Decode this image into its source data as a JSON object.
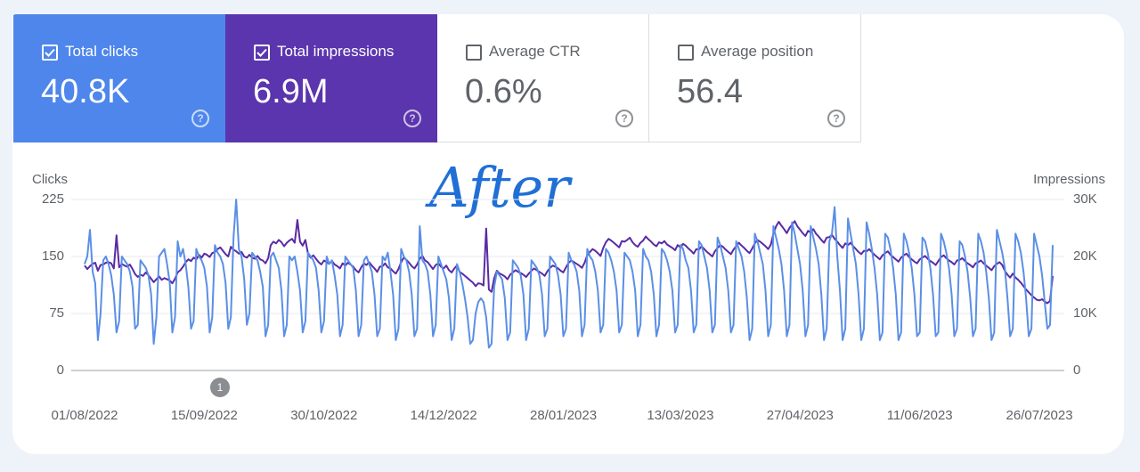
{
  "cards": [
    {
      "label": "Total clicks",
      "value": "40.8K",
      "selected": true,
      "color": "#4e86ec"
    },
    {
      "label": "Total impressions",
      "value": "6.9M",
      "selected": true,
      "color": "#5b35ae"
    },
    {
      "label": "Average CTR",
      "value": "0.6%",
      "selected": false
    },
    {
      "label": "Average position",
      "value": "56.4",
      "selected": false
    }
  ],
  "chart_data": {
    "type": "line",
    "annotation": "After",
    "event_marker": "1",
    "y_label": "Clicks",
    "y2_label": "Impressions",
    "ylim": [
      0,
      225
    ],
    "yticks": [
      0,
      75,
      150,
      225
    ],
    "y2lim": [
      0,
      30000
    ],
    "y2ticks": [
      0,
      {
        "value": 10000,
        "label": "10K"
      },
      {
        "value": 20000,
        "label": "20K"
      },
      {
        "value": 30000,
        "label": "30K"
      }
    ],
    "grid": true,
    "categories": [
      "01/08/2022",
      null,
      null,
      null,
      null,
      null,
      null,
      null,
      null,
      null,
      null,
      null,
      null,
      null,
      null,
      null,
      null,
      null,
      null,
      null,
      null,
      null,
      null,
      null,
      null,
      null,
      null,
      null,
      null,
      null,
      null,
      null,
      null,
      null,
      null,
      null,
      null,
      null,
      null,
      null,
      null,
      null,
      null,
      null,
      null,
      "15/09/2022",
      null,
      null,
      null,
      null,
      null,
      null,
      null,
      null,
      null,
      null,
      null,
      null,
      null,
      null,
      null,
      null,
      null,
      null,
      null,
      null,
      null,
      null,
      null,
      null,
      null,
      null,
      null,
      null,
      null,
      null,
      null,
      null,
      null,
      null,
      null,
      null,
      null,
      null,
      null,
      null,
      null,
      null,
      null,
      null,
      "30/10/2022",
      null,
      null,
      null,
      null,
      null,
      null,
      null,
      null,
      null,
      null,
      null,
      null,
      null,
      null,
      null,
      null,
      null,
      null,
      null,
      null,
      null,
      null,
      null,
      null,
      null,
      null,
      null,
      null,
      null,
      null,
      null,
      null,
      null,
      null,
      null,
      null,
      null,
      null,
      null,
      null,
      null,
      null,
      null,
      null,
      "14/12/2022",
      null,
      null,
      null,
      null,
      null,
      null,
      null,
      null,
      null,
      null,
      null,
      null,
      null,
      null,
      null,
      null,
      null,
      null,
      null,
      null,
      null,
      null,
      null,
      null,
      null,
      null,
      null,
      null,
      null,
      null,
      null,
      null,
      null,
      null,
      null,
      null,
      null,
      null,
      null,
      null,
      null,
      null,
      null,
      null,
      "28/01/2023",
      null,
      null,
      null,
      null,
      null,
      null,
      null,
      null,
      null,
      null,
      null,
      null,
      null,
      null,
      null,
      null,
      null,
      null,
      null,
      null,
      null,
      null,
      null,
      null,
      null,
      null,
      null,
      null,
      null,
      null,
      null,
      null,
      null,
      null,
      null,
      null,
      null,
      null,
      null,
      null,
      null,
      null,
      null,
      "13/03/2023",
      null,
      null,
      null,
      null,
      null,
      null,
      null,
      null,
      null,
      null,
      null,
      null,
      null,
      null,
      null,
      null,
      null,
      null,
      null,
      null,
      null,
      null,
      null,
      null,
      null,
      null,
      null,
      null,
      null,
      null,
      null,
      null,
      null,
      null,
      null,
      null,
      null,
      null,
      null,
      null,
      null,
      null,
      null,
      null,
      "27/04/2023",
      null,
      null,
      null,
      null,
      null,
      null,
      null,
      null,
      null,
      null,
      null,
      null,
      null,
      null,
      null,
      null,
      null,
      null,
      null,
      null,
      null,
      null,
      null,
      null,
      null,
      null,
      null,
      null,
      null,
      null,
      null,
      null,
      null,
      null,
      null,
      null,
      null,
      null,
      null,
      null,
      null,
      null,
      null,
      null,
      "11/06/2023",
      null,
      null,
      null,
      null,
      null,
      null,
      null,
      null,
      null,
      null,
      null,
      null,
      null,
      null,
      null,
      null,
      null,
      null,
      null,
      null,
      null,
      null,
      null,
      null,
      null,
      null,
      null,
      null,
      null,
      null,
      null,
      null,
      null,
      null,
      null,
      null,
      null,
      null,
      null,
      null,
      null,
      null,
      null,
      null,
      "26/07/2023",
      null,
      null,
      null,
      null,
      null
    ],
    "series": [
      {
        "color": "#5a8fe6",
        "values": [
          140,
          150,
          185,
          130,
          115,
          40,
          75,
          145,
          150,
          140,
          125,
          100,
          50,
          65,
          150,
          145,
          140,
          130,
          110,
          55,
          60,
          145,
          140,
          135,
          125,
          100,
          35,
          70,
          150,
          155,
          160,
          140,
          115,
          50,
          70,
          170,
          150,
          160,
          140,
          110,
          55,
          65,
          160,
          150,
          145,
          135,
          110,
          50,
          70,
          165,
          155,
          150,
          140,
          115,
          55,
          70,
          175,
          225,
          160,
          150,
          120,
          60,
          75,
          155,
          150,
          145,
          130,
          110,
          45,
          60,
          150,
          155,
          145,
          135,
          105,
          45,
          60,
          150,
          145,
          150,
          130,
          105,
          50,
          65,
          155,
          150,
          145,
          135,
          105,
          50,
          65,
          150,
          140,
          145,
          125,
          100,
          45,
          60,
          150,
          145,
          140,
          135,
          105,
          45,
          60,
          145,
          150,
          140,
          130,
          100,
          45,
          55,
          150,
          145,
          155,
          130,
          100,
          40,
          55,
          160,
          150,
          145,
          130,
          100,
          45,
          55,
          190,
          145,
          140,
          130,
          100,
          45,
          60,
          150,
          140,
          130,
          120,
          95,
          40,
          55,
          140,
          130,
          115,
          95,
          70,
          35,
          40,
          75,
          90,
          95,
          90,
          70,
          30,
          35,
          110,
          130,
          125,
          120,
          95,
          40,
          50,
          145,
          140,
          135,
          125,
          100,
          40,
          55,
          145,
          140,
          135,
          125,
          100,
          45,
          55,
          150,
          145,
          140,
          125,
          100,
          45,
          55,
          155,
          145,
          140,
          130,
          105,
          45,
          60,
          160,
          150,
          145,
          130,
          105,
          50,
          60,
          160,
          155,
          145,
          130,
          105,
          50,
          60,
          155,
          150,
          145,
          130,
          105,
          45,
          60,
          160,
          150,
          145,
          130,
          100,
          45,
          60,
          160,
          155,
          145,
          130,
          105,
          50,
          60,
          165,
          160,
          145,
          135,
          105,
          50,
          60,
          170,
          165,
          150,
          135,
          105,
          50,
          60,
          175,
          165,
          150,
          135,
          105,
          50,
          60,
          170,
          160,
          150,
          130,
          95,
          40,
          55,
          180,
          170,
          155,
          140,
          105,
          45,
          60,
          190,
          175,
          160,
          140,
          105,
          45,
          60,
          195,
          180,
          160,
          140,
          105,
          45,
          60,
          190,
          175,
          160,
          140,
          100,
          40,
          55,
          170,
          180,
          215,
          150,
          105,
          40,
          55,
          200,
          180,
          160,
          140,
          100,
          40,
          55,
          195,
          180,
          160,
          135,
          100,
          40,
          50,
          180,
          175,
          160,
          135,
          100,
          40,
          50,
          180,
          170,
          155,
          135,
          100,
          45,
          50,
          175,
          170,
          155,
          135,
          100,
          45,
          50,
          180,
          170,
          155,
          135,
          100,
          45,
          55,
          170,
          165,
          150,
          130,
          95,
          45,
          55,
          180,
          170,
          155,
          130,
          95,
          40,
          50,
          185,
          170,
          155,
          135,
          95,
          45,
          55,
          180,
          170,
          155,
          130,
          95,
          45,
          55,
          180,
          165,
          150,
          125,
          90,
          55,
          60,
          165
        ]
      },
      {
        "color": "#5a2aa3",
        "axis": "y2",
        "values": [
          18400,
          17800,
          18300,
          18700,
          18900,
          17500,
          18500,
          18600,
          18900,
          19000,
          18800,
          17900,
          23700,
          18100,
          18700,
          18400,
          18200,
          18600,
          17800,
          16900,
          16400,
          16800,
          16600,
          17200,
          16700,
          16100,
          15500,
          16000,
          16500,
          15900,
          16200,
          16000,
          15800,
          15300,
          16100,
          17200,
          17600,
          18200,
          19000,
          19500,
          19200,
          19800,
          19500,
          20300,
          19800,
          20500,
          20300,
          19900,
          20600,
          20800,
          21300,
          21600,
          21000,
          20400,
          20000,
          21700,
          21200,
          20900,
          20500,
          20800,
          20000,
          19800,
          20300,
          19800,
          19600,
          20100,
          19500,
          19300,
          18800,
          19700,
          22000,
          22600,
          22300,
          22900,
          22500,
          21800,
          22400,
          22800,
          23100,
          22400,
          26400,
          22600,
          21900,
          22900,
          20500,
          19800,
          20200,
          19600,
          19000,
          18600,
          19300,
          19000,
          18700,
          19200,
          18600,
          18300,
          17900,
          18800,
          18400,
          18900,
          18600,
          18200,
          17600,
          17200,
          18100,
          18800,
          18500,
          19000,
          18400,
          17900,
          17300,
          18200,
          18300,
          18800,
          18100,
          17900,
          17400,
          17000,
          17800,
          19000,
          19800,
          19400,
          18900,
          18300,
          17900,
          18600,
          19600,
          20100,
          19300,
          19000,
          18400,
          17800,
          18500,
          18800,
          18200,
          17900,
          18400,
          17600,
          17200,
          17900,
          18400,
          17300,
          17000,
          16600,
          16200,
          15800,
          15400,
          14800,
          15300,
          15200,
          14900,
          24900,
          14200,
          13800,
          16200,
          17500,
          17000,
          16800,
          16500,
          16000,
          16800,
          17200,
          17600,
          17300,
          17100,
          16800,
          16400,
          17000,
          17500,
          17900,
          17600,
          17300,
          17000,
          16600,
          17400,
          18000,
          18400,
          18200,
          17900,
          17500,
          17200,
          18100,
          18900,
          19300,
          19000,
          18700,
          18400,
          18000,
          18900,
          20200,
          20800,
          21300,
          21000,
          20600,
          20100,
          21500,
          22500,
          23100,
          22800,
          22400,
          22000,
          21600,
          22700,
          22600,
          22900,
          23300,
          22500,
          22000,
          21700,
          22400,
          22800,
          23500,
          23000,
          22600,
          22100,
          21800,
          22500,
          22300,
          22700,
          22100,
          21800,
          21500,
          21100,
          22000,
          21600,
          22200,
          21900,
          21400,
          21000,
          20500,
          21300,
          21200,
          21800,
          21300,
          20800,
          20400,
          20000,
          20900,
          21500,
          22000,
          21700,
          21200,
          20800,
          20400,
          21200,
          21800,
          22400,
          21900,
          21500,
          21000,
          20600,
          21400,
          22300,
          22900,
          22600,
          22200,
          21800,
          21300,
          22100,
          24000,
          25300,
          26100,
          25400,
          24800,
          24100,
          25000,
          25600,
          26200,
          25300,
          24700,
          24100,
          23600,
          24500,
          24200,
          24800,
          24000,
          23500,
          22900,
          22400,
          23300,
          23400,
          23800,
          23100,
          22600,
          22000,
          21500,
          22300,
          22000,
          22400,
          21800,
          21300,
          20800,
          20400,
          21000,
          20900,
          21300,
          20800,
          20300,
          19900,
          19500,
          20200,
          20600,
          20900,
          20300,
          19900,
          19500,
          19100,
          19800,
          20200,
          20500,
          19900,
          19500,
          19100,
          18800,
          19500,
          19800,
          20100,
          19600,
          19200,
          18900,
          18500,
          19200,
          19900,
          20200,
          19700,
          19300,
          19000,
          18600,
          19300,
          19400,
          19700,
          19200,
          18800,
          18500,
          18100,
          18800,
          19000,
          19300,
          18800,
          18400,
          18000,
          17600,
          18300,
          18700,
          19000,
          18500,
          17500,
          16800,
          16300,
          17000,
          16300,
          15900,
          15400,
          14800,
          14200,
          13700,
          13200,
          12800,
          12400,
          12300,
          12500,
          12100,
          11800,
          12200,
          16600
        ]
      }
    ]
  }
}
